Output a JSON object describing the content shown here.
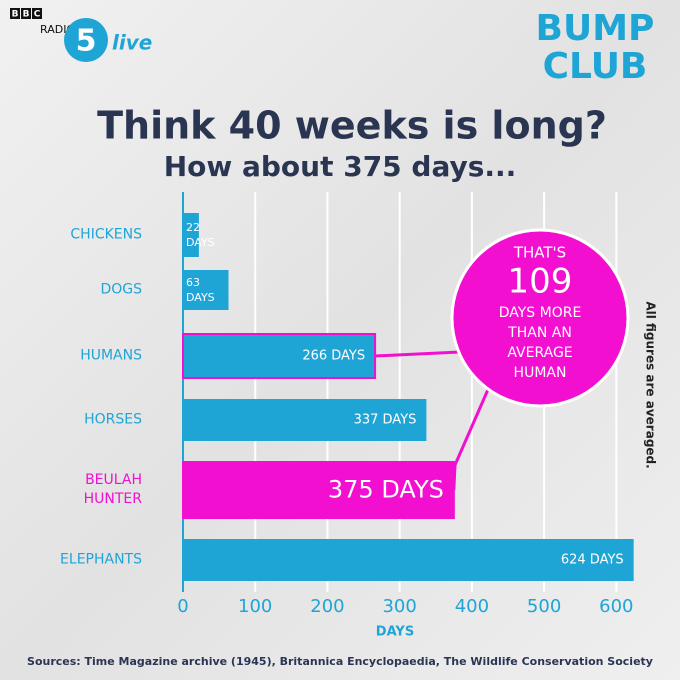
{
  "header": {
    "bbc": [
      "B",
      "B",
      "C"
    ],
    "radio": "RADIO",
    "station_number": "5",
    "station_name": "live",
    "brand": [
      "BUMP",
      "CLUB"
    ]
  },
  "chart_data": {
    "type": "bar",
    "orientation": "horizontal",
    "title": "Think 40 weeks is long?",
    "subtitle": "How about 375 days...",
    "categories": [
      "CHICKENS",
      "DOGS",
      "HUMANS",
      "HORSES",
      "BEULAH HUNTER",
      "ELEPHANTS"
    ],
    "values": [
      22,
      63,
      266,
      337,
      375,
      624
    ],
    "value_labels": [
      "22 DAYS",
      "63 DAYS",
      "266 DAYS",
      "337 DAYS",
      "375 DAYS",
      "624 DAYS"
    ],
    "colors": [
      "#1ea5d6",
      "#1ea5d6",
      "#1ea5d6",
      "#1ea5d6",
      "#f20fd0",
      "#1ea5d6"
    ],
    "xlim": [
      0,
      630
    ],
    "xticks": [
      0,
      100,
      200,
      300,
      400,
      500,
      600
    ],
    "grid": true,
    "xlabel": "DAYS",
    "callout": [
      "THAT'S",
      "109",
      "DAYS MORE",
      "THAN AN",
      "AVERAGE",
      "HUMAN"
    ],
    "note": "All figures are averaged.",
    "source": "Sources: Time Magazine archive (1945), Britannica Encyclopaedia, The Wildlife Conservation Society"
  }
}
